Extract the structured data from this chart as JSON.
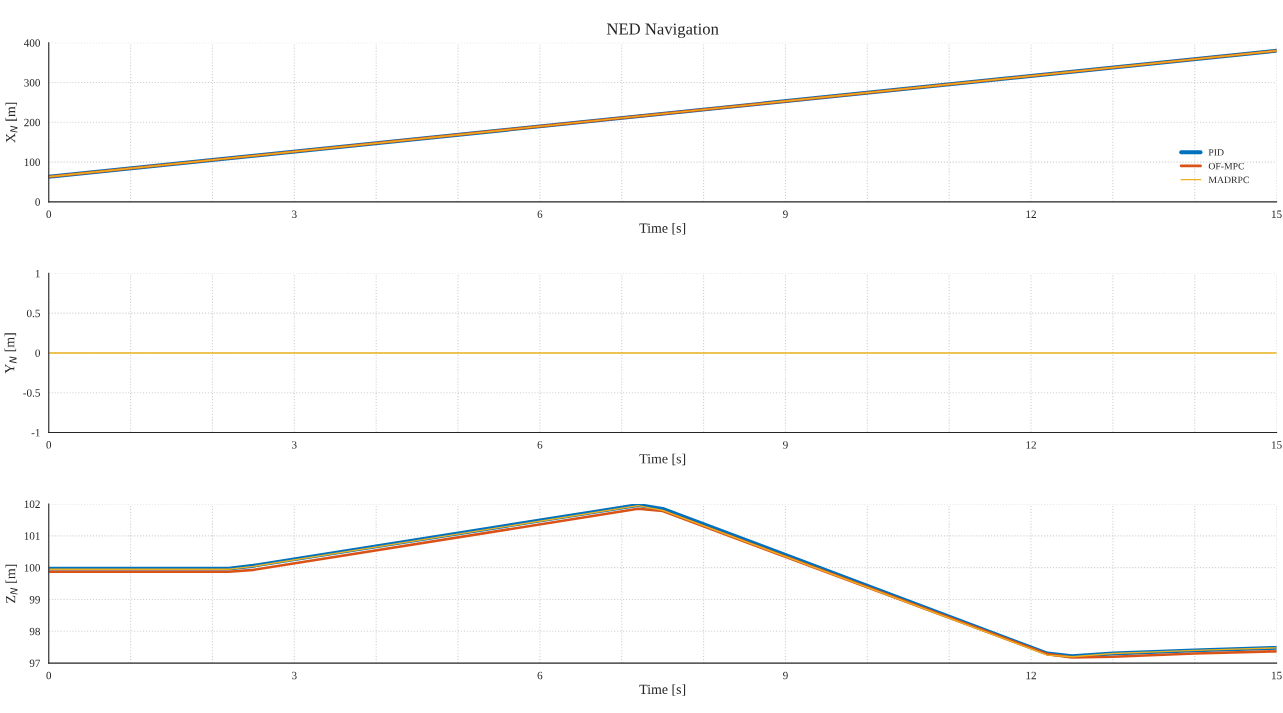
{
  "chart_data": [
    {
      "type": "line",
      "title": "NED Navigation",
      "xlabel": "Time [s]",
      "ylabel": "X$_{N}$ [m]",
      "xlim": [
        0,
        15
      ],
      "ylim": [
        0,
        400
      ],
      "xticks": [
        0,
        {
          "value": 1,
          "label": null
        },
        {
          "value": 2,
          "label": null
        },
        3,
        {
          "value": 4,
          "label": null
        },
        {
          "value": 5,
          "label": null
        },
        6,
        {
          "value": 7,
          "label": null
        },
        {
          "value": 8,
          "label": null
        },
        9,
        {
          "value": 10,
          "label": null
        },
        {
          "value": 11,
          "label": null
        },
        12,
        {
          "value": 13,
          "label": null
        },
        {
          "value": 14,
          "label": null
        },
        15
      ],
      "yticks": [
        0,
        100,
        200,
        300,
        400
      ],
      "grid": true,
      "legend": "bottom right",
      "series": [
        {
          "name": "PID",
          "color": "#0072bd",
          "x": [
            0,
            15
          ],
          "values": [
            63,
            380
          ]
        },
        {
          "name": "OF-MPC",
          "color": "#d95319",
          "x": [
            0,
            15
          ],
          "values": [
            63,
            380
          ]
        },
        {
          "name": "MADRPC",
          "color": "#edb120",
          "x": [
            0,
            15
          ],
          "values": [
            63,
            380
          ]
        }
      ]
    },
    {
      "type": "line",
      "xlabel": "Time [s]",
      "ylabel": "Y$_{N}$ [m]",
      "xlim": [
        0,
        15
      ],
      "ylim": [
        -1,
        1
      ],
      "xticks": [
        0,
        {
          "value": 1,
          "label": null
        },
        {
          "value": 2,
          "label": null
        },
        3,
        {
          "value": 4,
          "label": null
        },
        {
          "value": 5,
          "label": null
        },
        6,
        {
          "value": 7,
          "label": null
        },
        {
          "value": 8,
          "label": null
        },
        9,
        {
          "value": 10,
          "label": null
        },
        {
          "value": 11,
          "label": null
        },
        12,
        {
          "value": 13,
          "label": null
        },
        {
          "value": 14,
          "label": null
        },
        15
      ],
      "yticks": [
        -1,
        -0.5,
        0,
        0.5,
        1
      ],
      "grid": true,
      "series": [
        {
          "color": "#edb120",
          "x": [
            0,
            15
          ],
          "values": [
            0,
            0
          ]
        }
      ]
    },
    {
      "type": "line",
      "xlabel": "Time [s]",
      "ylabel": "Z$_{N}$ [m]",
      "xlim": [
        0,
        15
      ],
      "ylim": [
        97,
        102
      ],
      "xticks": [
        0,
        {
          "value": 1,
          "label": null
        },
        {
          "value": 2,
          "label": null
        },
        3,
        {
          "value": 4,
          "label": null
        },
        {
          "value": 5,
          "label": null
        },
        6,
        {
          "value": 7,
          "label": null
        },
        {
          "value": 8,
          "label": null
        },
        9,
        {
          "value": 10,
          "label": null
        },
        {
          "value": 11,
          "label": null
        },
        12,
        {
          "value": 13,
          "label": null
        },
        {
          "value": 14,
          "label": null
        },
        15
      ],
      "yticks": [
        97,
        98,
        99,
        100,
        101,
        102
      ],
      "grid": true,
      "series": [
        {
          "color": "#0072bd",
          "x": [
            0,
            2.2,
            2.5,
            7.2,
            7.5,
            12.2,
            12.5,
            13,
            14,
            15
          ],
          "values": [
            99.97,
            99.97,
            100.06,
            101.97,
            101.85,
            97.3,
            97.22,
            97.3,
            97.4,
            97.48
          ]
        },
        {
          "color": "#d95319",
          "x": [
            0,
            2.2,
            2.5,
            7.2,
            7.5,
            12.2,
            12.5,
            13,
            14,
            15
          ],
          "values": [
            99.87,
            99.87,
            99.93,
            101.85,
            101.78,
            97.28,
            97.18,
            97.2,
            97.3,
            97.37
          ]
        },
        {
          "color": "#edb120",
          "x": [
            0,
            2.2,
            2.5,
            7.2,
            7.5,
            12.2,
            12.5,
            13,
            14,
            15
          ],
          "values": [
            99.95,
            99.95,
            100.04,
            101.95,
            101.8,
            97.25,
            97.2,
            97.3,
            97.4,
            97.48
          ]
        }
      ]
    }
  ]
}
